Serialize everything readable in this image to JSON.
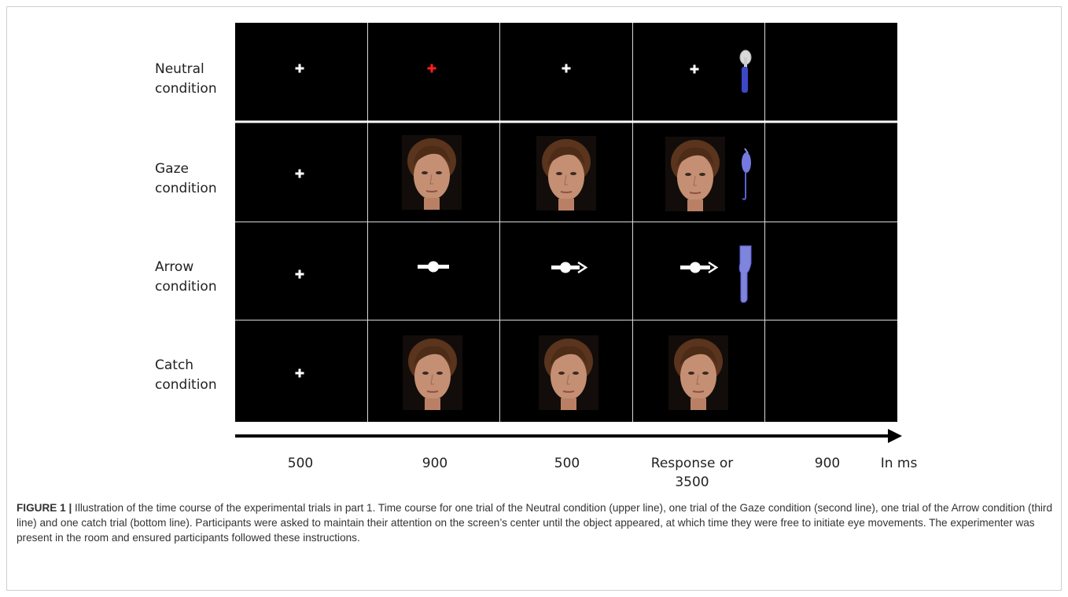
{
  "rows": [
    {
      "line1": "Neutral",
      "line2": "condition"
    },
    {
      "line1": "Gaze",
      "line2": "condition"
    },
    {
      "line1": "Arrow",
      "line2": "condition"
    },
    {
      "line1": "Catch",
      "line2": "condition"
    }
  ],
  "timeline": {
    "labels": [
      "500",
      "900",
      "500",
      "900"
    ],
    "response_line1": "Response or",
    "response_line2": "3500",
    "unit": "In ms"
  },
  "colors": {
    "background": "#000000",
    "fixation": "#ffffff",
    "red_fixation": "#ff2020",
    "object_blue": "#5a5fd6",
    "skin": "#c58f73",
    "hair": "#5a341d"
  },
  "caption": {
    "label": "FIGURE 1 |",
    "text": " Illustration of the time course of the experimental trials in part 1. Time course for one trial of the Neutral condition (upper line), one trial of the Gaze condition (second line), one trial of the Arrow condition (third line) and one catch trial (bottom line). Participants were asked to maintain their attention on the screen’s center until the object appeared, at which time they were free to initiate eye movements. The experimenter was present in the room and ensured participants followed these instructions."
  }
}
